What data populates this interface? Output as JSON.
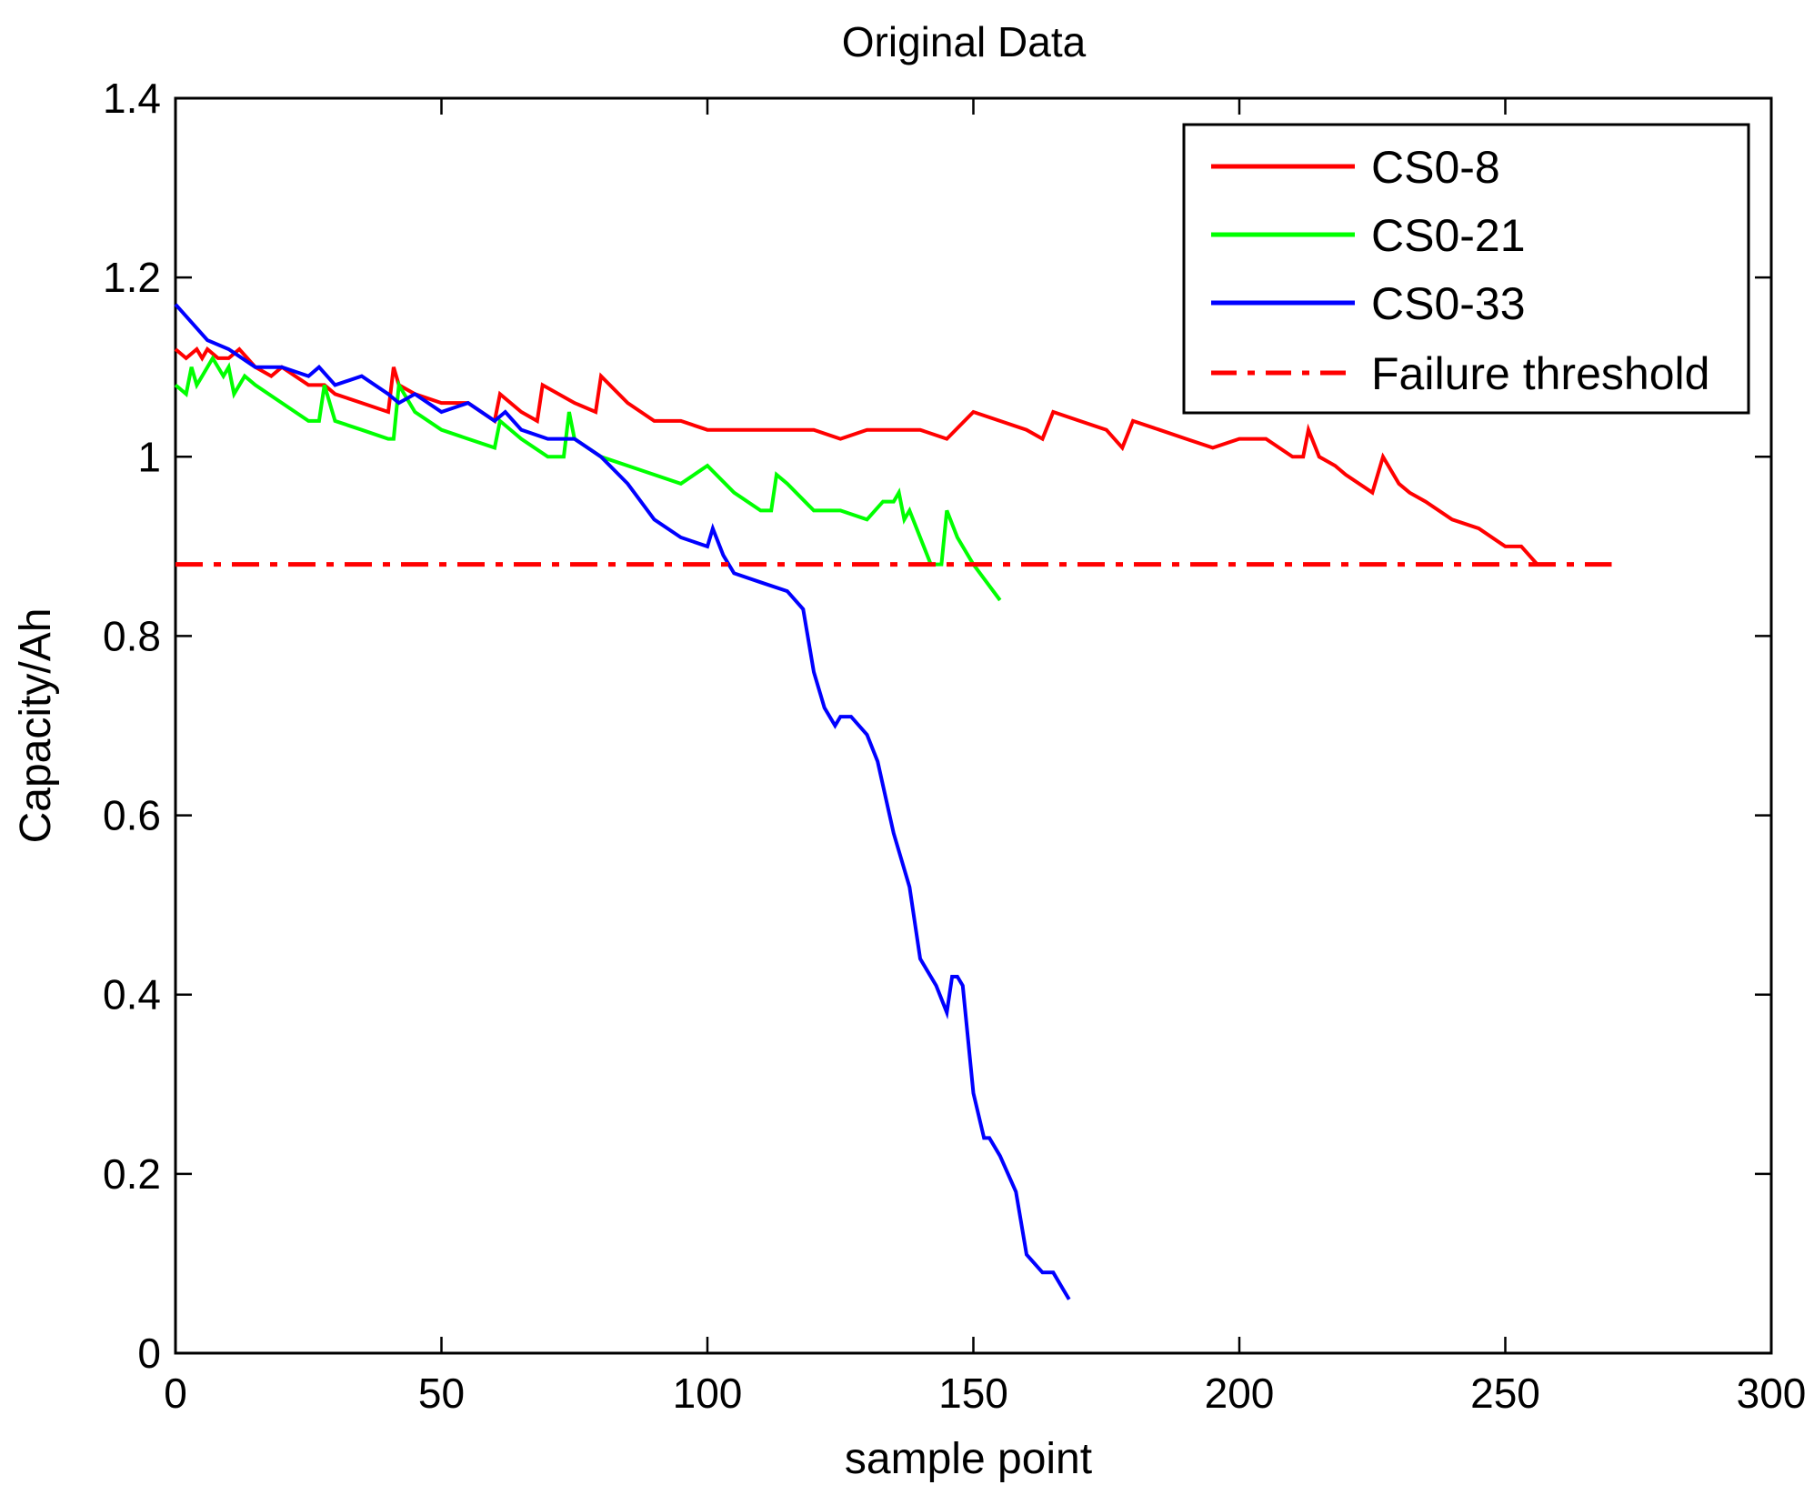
{
  "chart_data": {
    "type": "line",
    "title": "Original Data",
    "xlabel": "sample point",
    "ylabel": "Capacity/Ah",
    "xlim": [
      0,
      300
    ],
    "ylim": [
      0,
      1.4
    ],
    "xticks": [
      0,
      50,
      100,
      150,
      200,
      250,
      300
    ],
    "xtick_labels": [
      "0",
      "50",
      "100",
      "150",
      "200",
      "250",
      "300"
    ],
    "yticks": [
      0,
      0.2,
      0.4,
      0.6,
      0.8,
      1,
      1.2,
      1.4
    ],
    "ytick_labels": [
      "0",
      "0.2",
      "0.4",
      "0.6",
      "0.8",
      "1",
      "1.2",
      "1.4"
    ],
    "grid": false,
    "legend_position": "top-right",
    "series": [
      {
        "name": "CS0-8",
        "color": "#ff0000",
        "style": "solid",
        "x": [
          0,
          2,
          4,
          5,
          6,
          8,
          10,
          12,
          15,
          18,
          20,
          25,
          28,
          30,
          35,
          40,
          41,
          42,
          45,
          50,
          55,
          60,
          61,
          65,
          68,
          69,
          75,
          79,
          80,
          85,
          90,
          95,
          100,
          105,
          110,
          115,
          120,
          125,
          130,
          140,
          145,
          150,
          155,
          160,
          163,
          165,
          170,
          175,
          178,
          180,
          185,
          190,
          195,
          200,
          205,
          210,
          212,
          213,
          215,
          218,
          220,
          225,
          227,
          230,
          232,
          235,
          240,
          245,
          250,
          253,
          256
        ],
        "values": [
          1.12,
          1.11,
          1.12,
          1.11,
          1.12,
          1.11,
          1.11,
          1.12,
          1.1,
          1.09,
          1.1,
          1.08,
          1.08,
          1.07,
          1.06,
          1.05,
          1.1,
          1.08,
          1.07,
          1.06,
          1.06,
          1.04,
          1.07,
          1.05,
          1.04,
          1.08,
          1.06,
          1.05,
          1.09,
          1.06,
          1.04,
          1.04,
          1.03,
          1.03,
          1.03,
          1.03,
          1.03,
          1.02,
          1.03,
          1.03,
          1.02,
          1.05,
          1.04,
          1.03,
          1.02,
          1.05,
          1.04,
          1.03,
          1.01,
          1.04,
          1.03,
          1.02,
          1.01,
          1.02,
          1.02,
          1.0,
          1.0,
          1.03,
          1.0,
          0.99,
          0.98,
          0.96,
          1.0,
          0.97,
          0.96,
          0.95,
          0.93,
          0.92,
          0.9,
          0.9,
          0.88
        ]
      },
      {
        "name": "CS0-21",
        "color": "#00ff00",
        "style": "solid",
        "x": [
          0,
          2,
          3,
          4,
          5,
          7,
          9,
          10,
          11,
          13,
          15,
          20,
          25,
          27,
          28,
          30,
          35,
          40,
          41,
          42,
          45,
          50,
          55,
          60,
          61,
          65,
          70,
          73,
          74,
          75,
          80,
          85,
          90,
          95,
          100,
          105,
          110,
          112,
          113,
          115,
          120,
          125,
          130,
          133,
          135,
          136,
          137,
          138,
          140,
          142,
          144,
          145,
          147,
          150,
          155
        ],
        "values": [
          1.08,
          1.07,
          1.1,
          1.08,
          1.09,
          1.11,
          1.09,
          1.1,
          1.07,
          1.09,
          1.08,
          1.06,
          1.04,
          1.04,
          1.08,
          1.04,
          1.03,
          1.02,
          1.02,
          1.08,
          1.05,
          1.03,
          1.02,
          1.01,
          1.04,
          1.02,
          1.0,
          1.0,
          1.05,
          1.02,
          1.0,
          0.99,
          0.98,
          0.97,
          0.99,
          0.96,
          0.94,
          0.94,
          0.98,
          0.97,
          0.94,
          0.94,
          0.93,
          0.95,
          0.95,
          0.96,
          0.93,
          0.94,
          0.91,
          0.88,
          0.88,
          0.94,
          0.91,
          0.88,
          0.84
        ]
      },
      {
        "name": "CS0-33",
        "color": "#0000ff",
        "style": "solid",
        "x": [
          0,
          3,
          6,
          10,
          15,
          20,
          25,
          27,
          30,
          35,
          40,
          42,
          45,
          50,
          55,
          60,
          62,
          65,
          70,
          75,
          80,
          85,
          90,
          95,
          100,
          101,
          103,
          105,
          110,
          115,
          118,
          120,
          122,
          124,
          125,
          127,
          130,
          132,
          135,
          138,
          140,
          143,
          145,
          146,
          147,
          148,
          150,
          152,
          153,
          155,
          158,
          160,
          163,
          165,
          167,
          168
        ],
        "values": [
          1.17,
          1.15,
          1.13,
          1.12,
          1.1,
          1.1,
          1.09,
          1.1,
          1.08,
          1.09,
          1.07,
          1.06,
          1.07,
          1.05,
          1.06,
          1.04,
          1.05,
          1.03,
          1.02,
          1.02,
          1.0,
          0.97,
          0.93,
          0.91,
          0.9,
          0.92,
          0.89,
          0.87,
          0.86,
          0.85,
          0.83,
          0.76,
          0.72,
          0.7,
          0.71,
          0.71,
          0.69,
          0.66,
          0.58,
          0.52,
          0.44,
          0.41,
          0.38,
          0.42,
          0.42,
          0.41,
          0.29,
          0.24,
          0.24,
          0.22,
          0.18,
          0.11,
          0.09,
          0.09,
          0.07,
          0.06
        ]
      },
      {
        "name": "Failure threshold",
        "color": "#ff0000",
        "style": "dashdot",
        "x": [
          0,
          270
        ],
        "values": [
          0.88,
          0.88
        ]
      }
    ]
  }
}
